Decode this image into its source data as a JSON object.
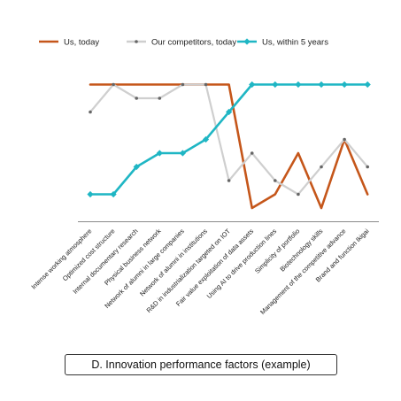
{
  "chart_data": {
    "type": "line",
    "categories": [
      "Intense working atmosphere",
      "Optimized cost structure",
      "Internal documentary research",
      "Physical business network",
      "Network of alumni in large companies",
      "Network of alumni in institutions",
      "R&D in industrialization targeted on IOT",
      "Fair value exploitation of data assets",
      "Using AI to drive production lines",
      "Simplicity of portfolio",
      "Biotechnology skills",
      "Management of the competitive advance",
      "Brand and function Ikigai"
    ],
    "series": [
      {
        "name": "Us, today",
        "color": "#c5561a",
        "marker": "none",
        "values": [
          10,
          10,
          10,
          10,
          10,
          10,
          10,
          1,
          2,
          5,
          1,
          6,
          2
        ]
      },
      {
        "name": "Our competitors, today",
        "color": "#cfcfcf",
        "marker": "dot",
        "values": [
          8,
          10,
          9,
          9,
          10,
          10,
          3,
          5,
          3,
          2,
          4,
          6,
          4
        ]
      },
      {
        "name": "Us, within 5 years",
        "color": "#1fb6c4",
        "marker": "diamond",
        "values": [
          2,
          2,
          4,
          5,
          5,
          6,
          8,
          10,
          10,
          10,
          10,
          10,
          10
        ]
      }
    ],
    "ylim": [
      0,
      10.8
    ],
    "grid": false,
    "legend_position": "top"
  },
  "caption": "D. Innovation performance factors (example)"
}
